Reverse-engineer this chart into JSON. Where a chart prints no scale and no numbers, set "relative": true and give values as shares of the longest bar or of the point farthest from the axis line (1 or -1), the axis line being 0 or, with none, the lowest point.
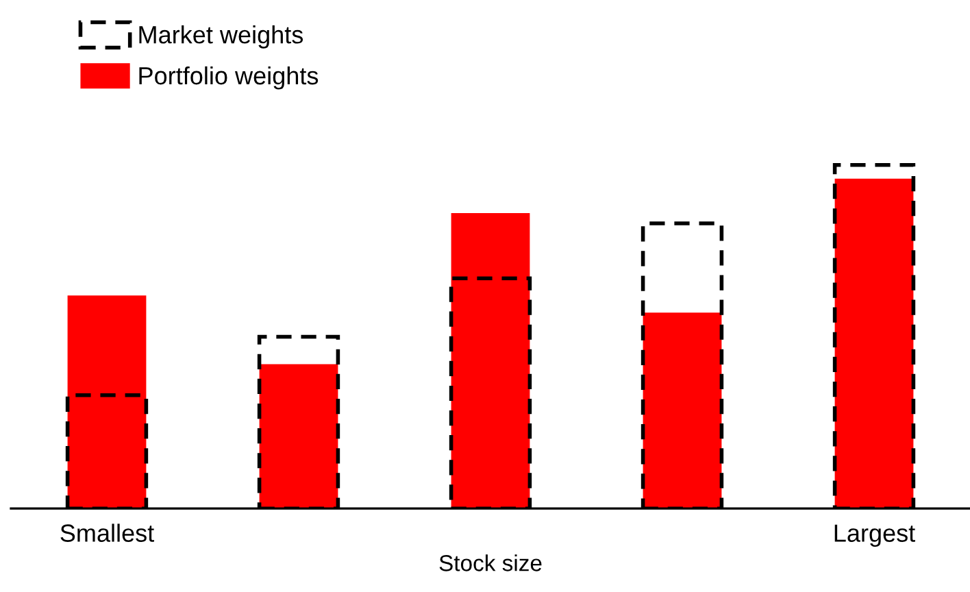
{
  "chart_data": {
    "type": "bar",
    "relative": true,
    "xlabel": "Stock size",
    "categories": [
      "Smallest",
      null,
      null,
      null,
      "Largest"
    ],
    "series": [
      {
        "name": "Market weights",
        "color": "#000000",
        "line_style": "dashed",
        "values": [
          0.33,
          0.5,
          0.67,
          0.83,
          1.0
        ]
      },
      {
        "name": "Portfolio weights",
        "color": "#ff0000",
        "values": [
          0.62,
          0.42,
          0.86,
          0.57,
          0.96
        ]
      }
    ],
    "legend": "top left",
    "grid": false
  }
}
